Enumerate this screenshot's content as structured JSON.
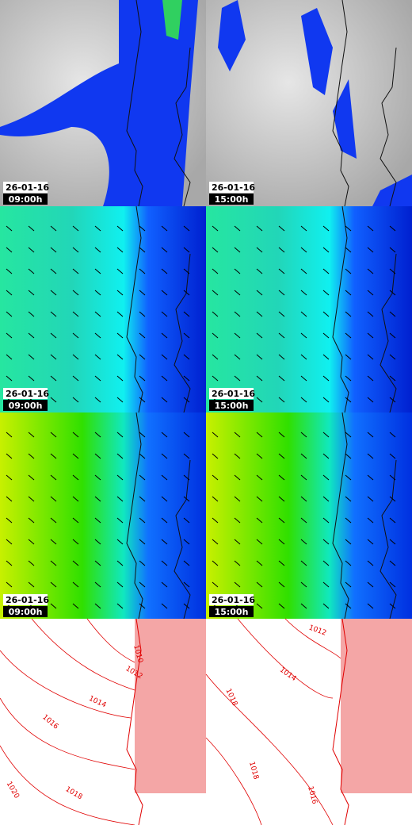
{
  "panels": [
    {
      "date": "26-01-16",
      "time": "09:00h"
    },
    {
      "date": "26-01-16",
      "time": "15:00h"
    },
    {
      "date": "26-01-16",
      "time": "09:00h"
    },
    {
      "date": "26-01-16",
      "time": "15:00h"
    },
    {
      "date": "26-01-16",
      "time": "09:00h"
    },
    {
      "date": "26-01-16",
      "time": "15:00h"
    }
  ],
  "isobars": [
    {
      "label": "1010"
    },
    {
      "label": "1012"
    },
    {
      "label": "1014"
    },
    {
      "label": "1016"
    },
    {
      "label": "1018"
    },
    {
      "label": "1020"
    },
    {
      "label": "1012"
    },
    {
      "label": "1014"
    },
    {
      "label": "1018"
    },
    {
      "label": "1018"
    },
    {
      "label": "1016"
    }
  ]
}
